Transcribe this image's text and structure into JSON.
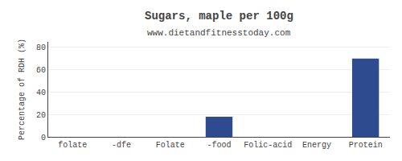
{
  "chart_data": {
    "type": "bar",
    "title": "Sugars, maple per 100g",
    "subtitle": "www.dietandfitnesstoday.com",
    "categories": [
      "folate",
      "-dfe",
      "Folate",
      "-food",
      "Folic-acid",
      "Energy",
      "Protein"
    ],
    "values": [
      0,
      0,
      0,
      18,
      0,
      0,
      70
    ],
    "color": "#2d4b8e",
    "ylabel": "Percentage of RDH (%)",
    "ylim": [
      0,
      85
    ],
    "yticks": [
      0,
      20,
      40,
      60,
      80
    ],
    "grid": true
  }
}
